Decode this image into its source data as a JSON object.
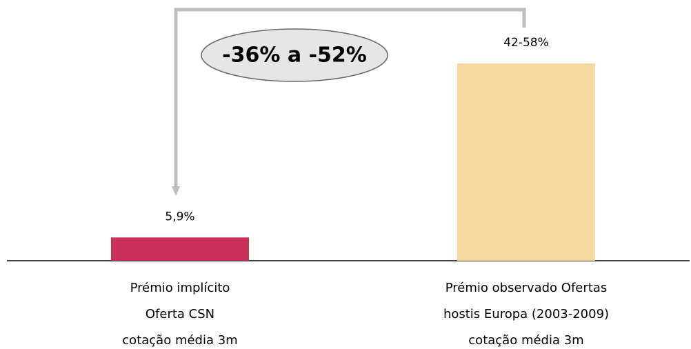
{
  "chart_data": {
    "type": "bar",
    "categories": [
      "Prémio implícito\nOferta CSN\ncotação média 3m",
      "Prémio observado Ofertas\nhostis Europa (2003-2009)\ncotação média 3m"
    ],
    "values": [
      5.9,
      50
    ],
    "value_labels": [
      "5,9%",
      "42-58%"
    ],
    "colors": [
      "#c8305a",
      "#f5d9a0"
    ],
    "annotation": "-36% a -52%"
  }
}
